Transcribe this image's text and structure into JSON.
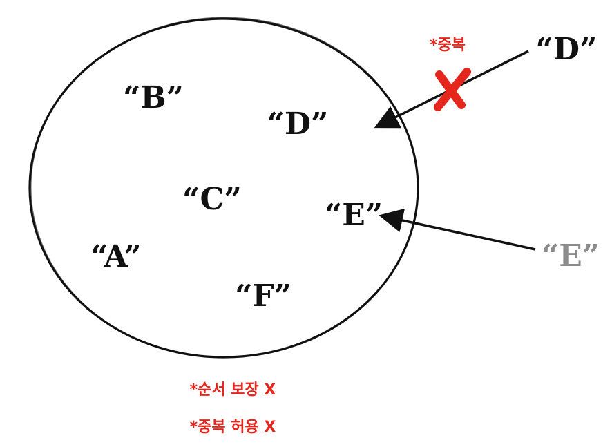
{
  "set_elements": [
    {
      "id": "B",
      "label": "“B”"
    },
    {
      "id": "D",
      "label": "“D”"
    },
    {
      "id": "C",
      "label": "“C”"
    },
    {
      "id": "E",
      "label": "“E”"
    },
    {
      "id": "A",
      "label": "“A”"
    },
    {
      "id": "F",
      "label": "“F”"
    }
  ],
  "incoming": [
    {
      "id": "D",
      "label": "“D”",
      "color": "#111111",
      "rejected": true,
      "note": "*중복"
    },
    {
      "id": "E",
      "label": "“E”",
      "color": "#8c8c8c",
      "rejected": false
    }
  ],
  "notes": {
    "order": "*순서 보장 X",
    "duplicate": "*중복 허용 X"
  },
  "colors": {
    "stroke": "#111111",
    "reject": "#e5261c",
    "note": "#e5261c",
    "muted": "#8c8c8c"
  }
}
